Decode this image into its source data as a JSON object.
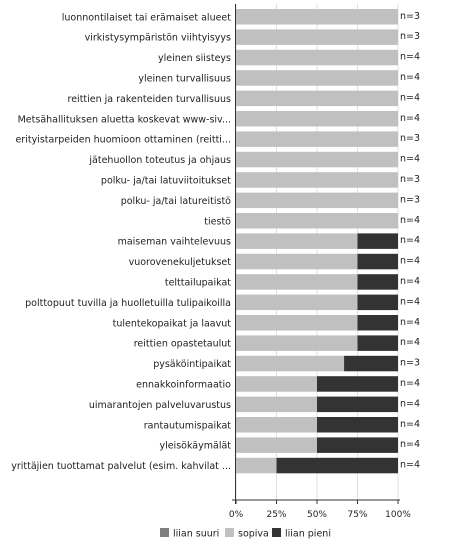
{
  "chart_data": {
    "type": "bar",
    "orientation": "horizontal",
    "stacked": true,
    "percent": true,
    "categories": [
      "luonnontilaiset tai erämaiset alueet",
      "virkistysympäristön viihtyisyys",
      "yleinen siisteys",
      "yleinen turvallisuus",
      "reittien ja rakenteiden turvallisuus",
      "Metsähallituksen aluetta koskevat www-siv...",
      "erityistarpeiden huomioon ottaminen (reitti...",
      "jätehuollon toteutus ja ohjaus",
      "polku- ja/tai latuviitoitukset",
      "polku- ja/tai latureitistö",
      "tiestö",
      "maiseman vaihtelevuus",
      "vuorovenekuljetukset",
      "telttailupaikat",
      "polttopuut tuvilla ja huolletuilla tulipaikoilla",
      "tulentekopaikat ja laavut",
      "reittien opastetaulut",
      "pysäköintipaikat",
      "ennakkoinformaatio",
      "uimarantojen palveluvarustus",
      "rantautumispaikat",
      "yleisökäymälät",
      "yrittäjien tuottamat palvelut (esim. kahvilat ..."
    ],
    "n_labels": [
      "n=3",
      "n=3",
      "n=4",
      "n=4",
      "n=4",
      "n=4",
      "n=3",
      "n=4",
      "n=3",
      "n=3",
      "n=4",
      "n=4",
      "n=4",
      "n=4",
      "n=4",
      "n=4",
      "n=4",
      "n=3",
      "n=4",
      "n=4",
      "n=4",
      "n=4",
      "n=4"
    ],
    "series": [
      {
        "name": "liian suuri",
        "color": "#7f7f7f",
        "values": [
          0,
          0,
          0,
          0,
          0,
          0,
          0,
          0,
          0,
          0,
          0,
          0,
          0,
          0,
          0,
          0,
          0,
          0,
          0,
          0,
          0,
          0,
          0
        ]
      },
      {
        "name": "sopiva",
        "color": "#c0c0c0",
        "values": [
          100,
          100,
          100,
          100,
          100,
          100,
          100,
          100,
          100,
          100,
          100,
          75,
          75,
          75,
          75,
          75,
          75,
          66.7,
          50,
          50,
          50,
          50,
          25
        ]
      },
      {
        "name": "liian pieni",
        "color": "#333333",
        "values": [
          0,
          0,
          0,
          0,
          0,
          0,
          0,
          0,
          0,
          0,
          0,
          25,
          25,
          25,
          25,
          25,
          25,
          33.3,
          50,
          50,
          50,
          50,
          75
        ]
      }
    ],
    "x_ticks": [
      "0%",
      "25%",
      "50%",
      "75%",
      "100%"
    ],
    "xlim": [
      0,
      100
    ],
    "legend_position": "bottom"
  }
}
